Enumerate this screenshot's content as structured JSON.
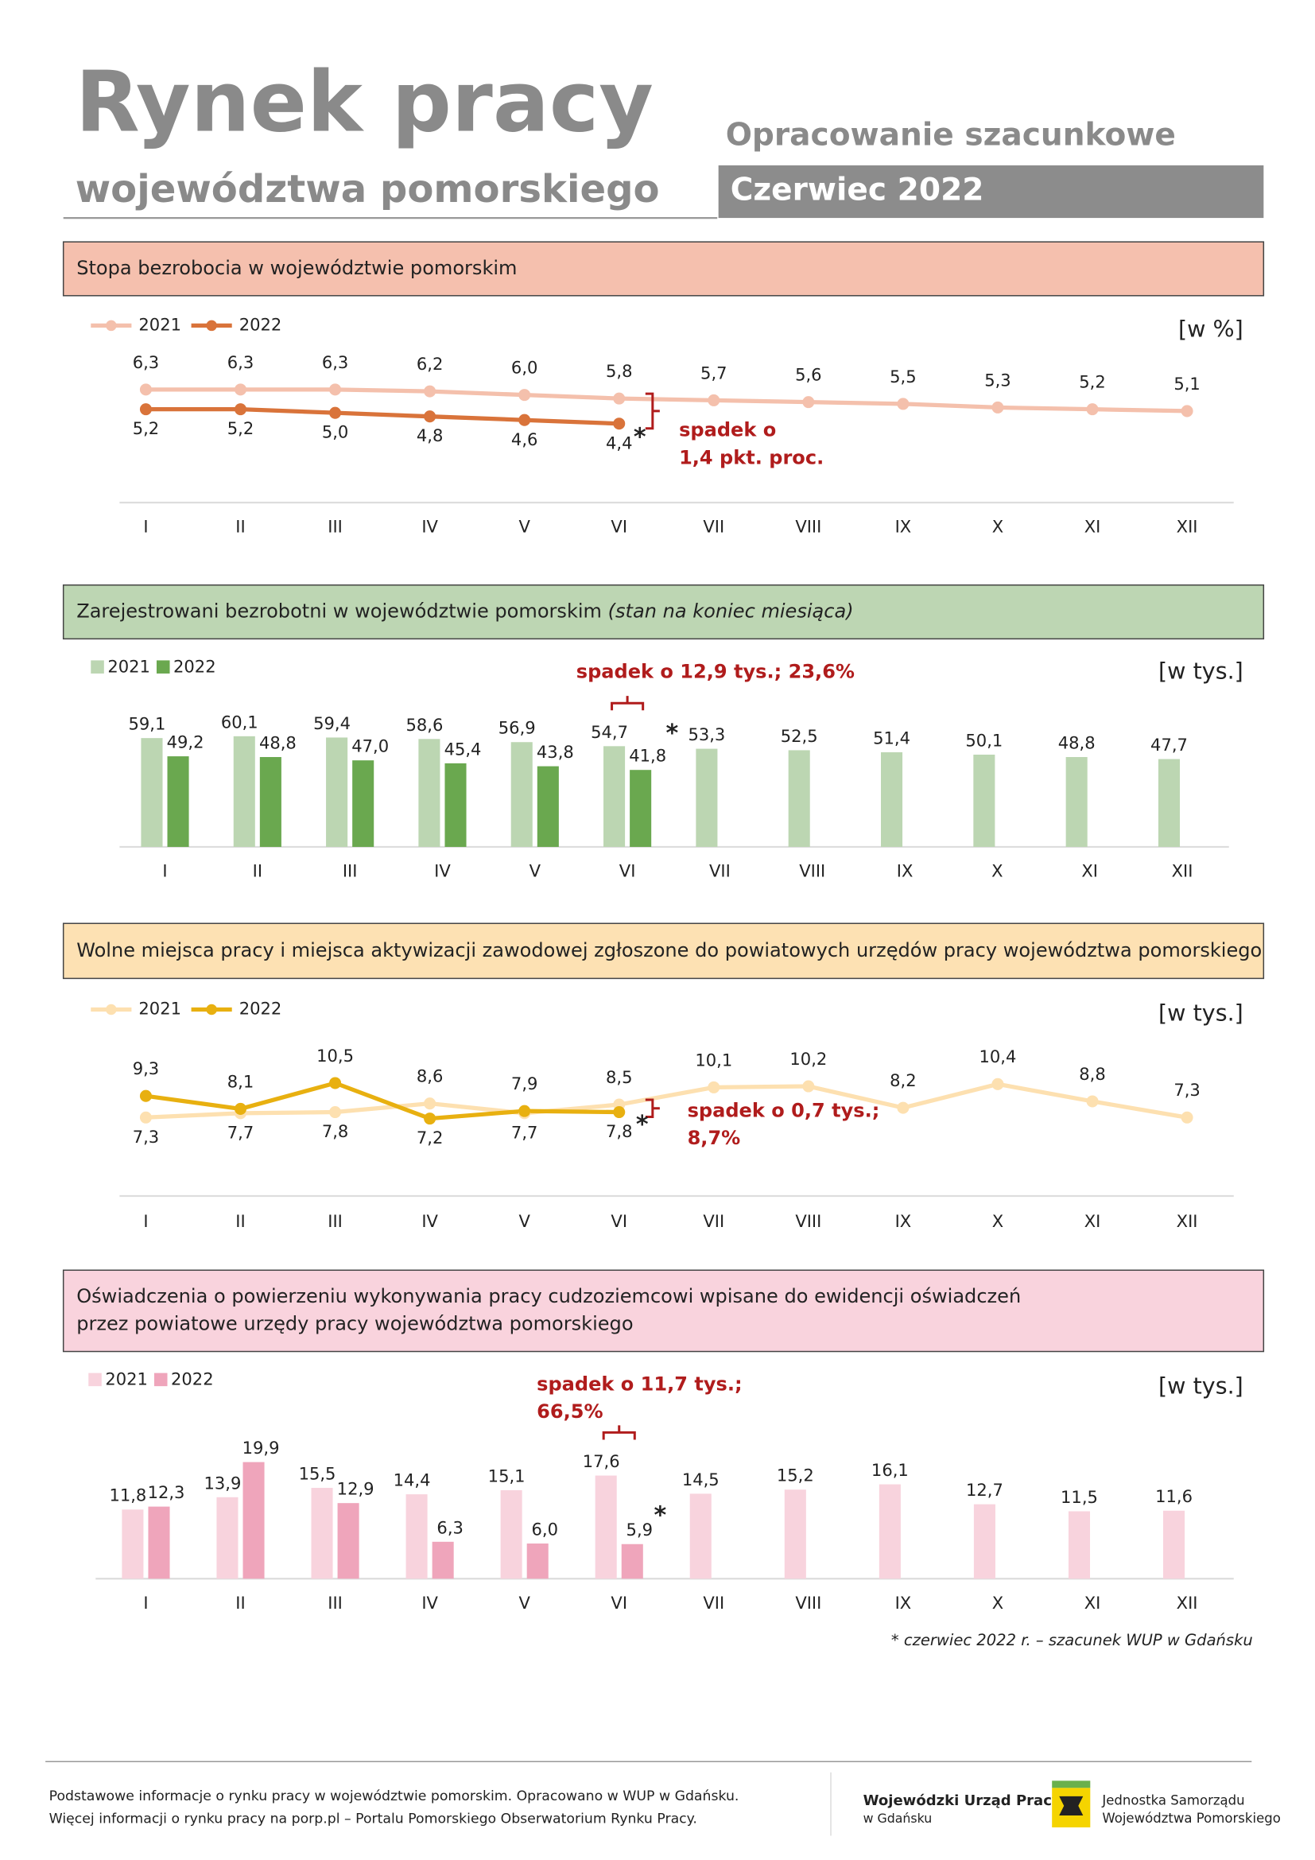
{
  "header": {
    "title": "Rynek pracy",
    "subtitle": "województwa pomorskiego",
    "kind": "Opracowanie szacunkowe",
    "period": "Czerwiec 2022"
  },
  "chart_data": [
    {
      "type": "line",
      "title": [
        "Stopa bezrobocia w województwie pomorskim"
      ],
      "unit": "[w %]",
      "categories": [
        "I",
        "II",
        "III",
        "IV",
        "V",
        "VI",
        "VII",
        "VIII",
        "IX",
        "X",
        "XI",
        "XII"
      ],
      "ylim": [
        0,
        10
      ],
      "series": [
        {
          "name": "2021",
          "color": "#f4c0ac",
          "values": [
            6.3,
            6.3,
            6.3,
            6.2,
            6.0,
            5.8,
            5.7,
            5.6,
            5.5,
            5.3,
            5.2,
            5.1
          ],
          "value_labels": [
            "6,3",
            "6,3",
            "6,3",
            "6,2",
            "6,0",
            "5,8",
            "5,7",
            "5,6",
            "5,5",
            "5,3",
            "5,2",
            "5,1"
          ]
        },
        {
          "name": "2022",
          "color": "#d9733a",
          "values": [
            5.2,
            5.2,
            5.0,
            4.8,
            4.6,
            4.4,
            null,
            null,
            null,
            null,
            null,
            null
          ],
          "value_labels": [
            "5,2",
            "5,2",
            "5,0",
            "4,8",
            "4,6",
            "4,4",
            null,
            null,
            null,
            null,
            null,
            null
          ]
        }
      ],
      "annotation": [
        "spadek o",
        "1,4 pkt. proc."
      ],
      "asterisk": "*"
    },
    {
      "type": "bar",
      "title": [
        "Zarejestrowani bezrobotni w województwie pomorskim"
      ],
      "title_note": "(stan na koniec miesiąca)",
      "unit": "[w tys.]",
      "categories": [
        "I",
        "II",
        "III",
        "IV",
        "V",
        "VI",
        "VII",
        "VIII",
        "IX",
        "X",
        "XI",
        "XII"
      ],
      "ylim": [
        0,
        100
      ],
      "series": [
        {
          "name": "2021",
          "color": "#bcd6b2",
          "values": [
            59.1,
            60.1,
            59.4,
            58.6,
            56.9,
            54.7,
            53.3,
            52.5,
            51.4,
            50.1,
            48.8,
            47.7
          ],
          "value_labels": [
            "59,1",
            "60,1",
            "59,4",
            "58,6",
            "56,9",
            "54,7",
            "53,3",
            "52,5",
            "51,4",
            "50,1",
            "48,8",
            "47,7"
          ]
        },
        {
          "name": "2022",
          "color": "#6aa84f",
          "values": [
            49.2,
            48.8,
            47.0,
            45.4,
            43.8,
            41.8,
            null,
            null,
            null,
            null,
            null,
            null
          ],
          "value_labels": [
            "49,2",
            "48,8",
            "47,0",
            "45,4",
            "43,8",
            "41,8",
            null,
            null,
            null,
            null,
            null,
            null
          ]
        }
      ],
      "annotation": [
        "spadek o 12,9 tys.; 23,6%"
      ],
      "asterisk": "*"
    },
    {
      "type": "line",
      "title": [
        "Wolne miejsca pracy i miejsca aktywizacji zawodowej zgłoszone do powiatowych urzędów pracy województwa pomorskiego"
      ],
      "unit": "[w tys.]",
      "categories": [
        "I",
        "II",
        "III",
        "IV",
        "V",
        "VI",
        "VII",
        "VIII",
        "IX",
        "X",
        "XI",
        "XII"
      ],
      "ylim": [
        0,
        15
      ],
      "series": [
        {
          "name": "2021",
          "color": "#fde0b0",
          "values": [
            7.3,
            7.7,
            7.8,
            8.6,
            7.7,
            8.5,
            10.1,
            10.2,
            8.2,
            10.4,
            8.8,
            7.3
          ],
          "value_labels": [
            "7,3",
            "7,7",
            "7,8",
            "8,6",
            "7,7",
            "8,5",
            "10,1",
            "10,2",
            "8,2",
            "10,4",
            "8,8",
            "7,3"
          ]
        },
        {
          "name": "2022",
          "color": "#e8b010",
          "values": [
            9.3,
            8.1,
            10.5,
            7.2,
            7.9,
            7.8,
            null,
            null,
            null,
            null,
            null,
            null
          ],
          "value_labels": [
            "9,3",
            "8,1",
            "10,5",
            "7,2",
            "7,9",
            "7,8",
            null,
            null,
            null,
            null,
            null,
            null
          ]
        }
      ],
      "annotation": [
        "spadek o 0,7 tys.;",
        "8,7%"
      ],
      "asterisk": "*"
    },
    {
      "type": "bar",
      "title": [
        "Oświadczenia o powierzeniu wykonywania pracy cudzoziemcowi wpisane do ewidencji oświadczeń",
        "przez powiatowe urzędy pracy województwa pomorskiego"
      ],
      "unit": "[w tys.]",
      "categories": [
        "I",
        "II",
        "III",
        "IV",
        "V",
        "VI",
        "VII",
        "VIII",
        "IX",
        "X",
        "XI",
        "XII"
      ],
      "ylim": [
        0,
        25
      ],
      "series": [
        {
          "name": "2021",
          "color": "#f8d3dd",
          "values": [
            11.8,
            13.9,
            15.5,
            14.4,
            15.1,
            17.6,
            14.5,
            15.2,
            16.1,
            12.7,
            11.5,
            11.6
          ],
          "value_labels": [
            "11,8",
            "13,9",
            "15,5",
            "14,4",
            "15,1",
            "17,6",
            "14,5",
            "15,2",
            "16,1",
            "12,7",
            "11,5",
            "11,6"
          ]
        },
        {
          "name": "2022",
          "color": "#efa5bb",
          "values": [
            12.3,
            19.9,
            12.9,
            6.3,
            6.0,
            5.9,
            null,
            null,
            null,
            null,
            null,
            null
          ],
          "value_labels": [
            "12,3",
            "19,9",
            "12,9",
            "6,3",
            "6,0",
            "5,9",
            null,
            null,
            null,
            null,
            null,
            null
          ]
        }
      ],
      "annotation": [
        "spadek o 11,7 tys.;",
        "66,5%"
      ],
      "asterisk": "*"
    }
  ],
  "footnote": "* czerwiec 2022 r. – szacunek WUP w Gdańsku",
  "footer": {
    "lines": [
      "Podstawowe informacje o rynku pracy w województwie pomorskim. Opracowano w WUP w Gdańsku.",
      "Więcej informacji o rynku pracy na porp.pl – Portalu Pomorskiego Obserwatorium Rynku Pracy."
    ],
    "office": [
      "Wojewódzki Urząd Pracy",
      "w Gdańsku"
    ],
    "region": [
      "Jednostka Samorządu",
      "Województwa Pomorskiego"
    ]
  }
}
